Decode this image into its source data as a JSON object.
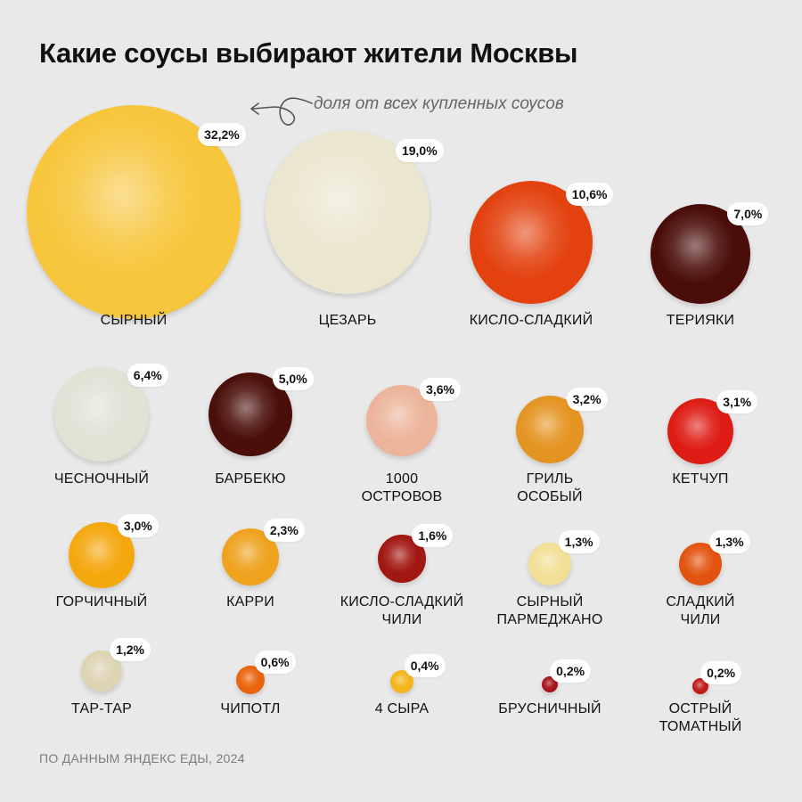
{
  "title": "Какие соусы выбирают жители Москвы",
  "note": "доля от всех купленных соусов",
  "footer": "ПО ДАННЫМ ЯНДЕКС ЕДЫ, 2024",
  "chart_data": {
    "type": "bubble",
    "unit": "%",
    "items": [
      {
        "name": "СЫРНЫЙ",
        "label": "32,2%",
        "value": 32.2,
        "color": "#f7c63c"
      },
      {
        "name": "ЦЕЗАРЬ",
        "label": "19,0%",
        "value": 19.0,
        "color": "#ebe6cf"
      },
      {
        "name": "КИСЛО-СЛАДКИЙ",
        "label": "10,6%",
        "value": 10.6,
        "color": "#e3420f"
      },
      {
        "name": "ТЕРИЯКИ",
        "label": "7,0%",
        "value": 7.0,
        "color": "#4a0d09"
      },
      {
        "name": "ЧЕСНОЧНЫЙ",
        "label": "6,4%",
        "value": 6.4,
        "color": "#e1e1d4"
      },
      {
        "name": "БАРБЕКЮ",
        "label": "5,0%",
        "value": 5.0,
        "color": "#4b0f0a"
      },
      {
        "name": "1000\nОСТРОВОВ",
        "label": "3,6%",
        "value": 3.6,
        "color": "#ecb49a"
      },
      {
        "name": "ГРИЛЬ\nОСОБЫЙ",
        "label": "3,2%",
        "value": 3.2,
        "color": "#e49422"
      },
      {
        "name": "КЕТЧУП",
        "label": "3,1%",
        "value": 3.1,
        "color": "#de1b14"
      },
      {
        "name": "ГОРЧИЧНЫЙ",
        "label": "3,0%",
        "value": 3.0,
        "color": "#f5a70e"
      },
      {
        "name": "КАРРИ",
        "label": "2,3%",
        "value": 2.3,
        "color": "#eea21d"
      },
      {
        "name": "КИСЛО-СЛАДКИЙ\nЧИЛИ",
        "label": "1,6%",
        "value": 1.6,
        "color": "#a11711"
      },
      {
        "name": "СЫРНЫЙ\nПАРМЕДЖАНО",
        "label": "1,3%",
        "value": 1.3,
        "color": "#f2df96"
      },
      {
        "name": "СЛАДКИЙ\nЧИЛИ",
        "label": "1,3%",
        "value": 1.3,
        "color": "#e2530f"
      },
      {
        "name": "ТАР-ТАР",
        "label": "1,2%",
        "value": 1.2,
        "color": "#ddd4b2"
      },
      {
        "name": "ЧИПОТЛ",
        "label": "0,6%",
        "value": 0.6,
        "color": "#e9640c"
      },
      {
        "name": "4 СЫРА",
        "label": "0,4%",
        "value": 0.4,
        "color": "#f3b51a"
      },
      {
        "name": "БРУСНИЧНЫЙ",
        "label": "0,2%",
        "value": 0.2,
        "color": "#a8141a"
      },
      {
        "name": "ОСТРЫЙ\nТОМАТНЫЙ",
        "label": "0,2%",
        "value": 0.2,
        "color": "#c01b17"
      }
    ]
  }
}
